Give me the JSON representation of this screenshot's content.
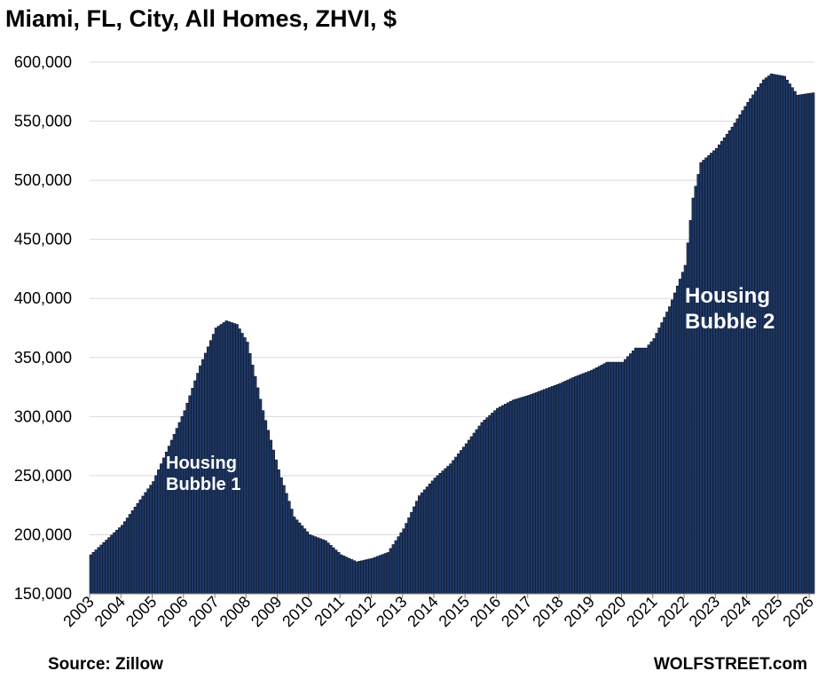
{
  "title": "Miami, FL, City, All Homes, ZHVI, $",
  "source": "Source: Zillow",
  "brand": "WOLFSTREET.com",
  "chart_data": {
    "type": "bar",
    "title": "Miami, FL, City, All Homes, ZHVI, $",
    "xlabel": "",
    "ylabel": "",
    "ylim": [
      150000,
      600000
    ],
    "y_ticks": [
      150000,
      200000,
      250000,
      300000,
      350000,
      400000,
      450000,
      500000,
      550000,
      600000
    ],
    "y_tick_labels": [
      "150,000",
      "200,000",
      "250,000",
      "300,000",
      "350,000",
      "400,000",
      "450,000",
      "500,000",
      "550,000",
      "600,000"
    ],
    "x_tick_labels": [
      "2003",
      "2004",
      "2005",
      "2006",
      "2007",
      "2008",
      "2009",
      "2010",
      "2011",
      "2012",
      "2013",
      "2014",
      "2015",
      "2016",
      "2017",
      "2018",
      "2019",
      "2020",
      "2021",
      "2022",
      "2023",
      "2024",
      "2025",
      "2026"
    ],
    "x_start": "2003-01",
    "x_end": "2026-02",
    "frequency": "monthly",
    "grid": true,
    "bar_color": "#1f3864",
    "annotations": [
      {
        "text_lines": [
          "Housing",
          "Bubble 1"
        ],
        "at": "2006-03"
      },
      {
        "text_lines": [
          "Housing",
          "Bubble 2"
        ],
        "at": "2022-01"
      }
    ],
    "anchors": [
      [
        "2003-01",
        183000
      ],
      [
        "2004-01",
        208000
      ],
      [
        "2005-01",
        245000
      ],
      [
        "2006-01",
        305000
      ],
      [
        "2006-07",
        343000
      ],
      [
        "2007-01",
        375000
      ],
      [
        "2007-05",
        381000
      ],
      [
        "2007-09",
        378000
      ],
      [
        "2008-01",
        363000
      ],
      [
        "2008-07",
        305000
      ],
      [
        "2009-01",
        255000
      ],
      [
        "2009-07",
        215000
      ],
      [
        "2010-01",
        200000
      ],
      [
        "2010-07",
        195000
      ],
      [
        "2011-01",
        183000
      ],
      [
        "2011-07",
        177000
      ],
      [
        "2012-01",
        180000
      ],
      [
        "2012-07",
        185000
      ],
      [
        "2013-01",
        205000
      ],
      [
        "2013-07",
        233000
      ],
      [
        "2014-01",
        248000
      ],
      [
        "2014-07",
        260000
      ],
      [
        "2015-01",
        277000
      ],
      [
        "2015-07",
        295000
      ],
      [
        "2016-01",
        307000
      ],
      [
        "2016-07",
        314000
      ],
      [
        "2017-01",
        318000
      ],
      [
        "2017-07",
        323000
      ],
      [
        "2018-01",
        328000
      ],
      [
        "2018-07",
        334000
      ],
      [
        "2019-01",
        339000
      ],
      [
        "2019-07",
        346000
      ],
      [
        "2020-01",
        346000
      ],
      [
        "2020-06",
        358000
      ],
      [
        "2020-10",
        358000
      ],
      [
        "2021-01",
        366000
      ],
      [
        "2021-07",
        393000
      ],
      [
        "2022-01",
        428000
      ],
      [
        "2022-04",
        485000
      ],
      [
        "2022-07",
        515000
      ],
      [
        "2023-01",
        527000
      ],
      [
        "2023-07",
        545000
      ],
      [
        "2024-01",
        566000
      ],
      [
        "2024-07",
        585000
      ],
      [
        "2024-10",
        590000
      ],
      [
        "2025-03",
        588000
      ],
      [
        "2025-08",
        572000
      ],
      [
        "2026-02",
        574000
      ]
    ]
  }
}
